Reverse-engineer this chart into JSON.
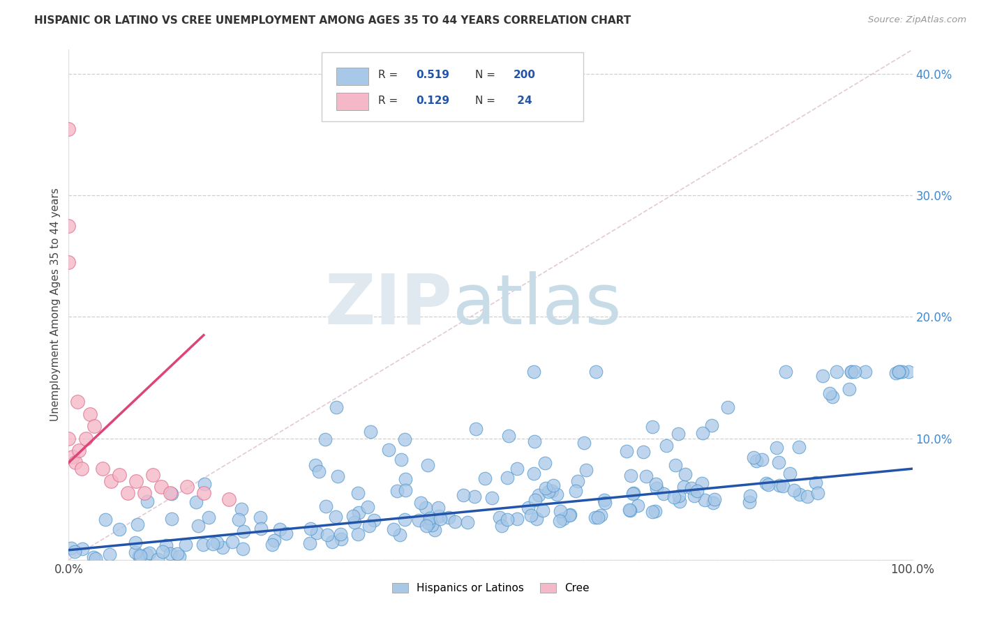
{
  "title": "HISPANIC OR LATINO VS CREE UNEMPLOYMENT AMONG AGES 35 TO 44 YEARS CORRELATION CHART",
  "source": "Source: ZipAtlas.com",
  "ylabel": "Unemployment Among Ages 35 to 44 years",
  "xlim": [
    0,
    1.0
  ],
  "ylim": [
    0,
    0.42
  ],
  "blue_color": "#a8c8e8",
  "blue_edge_color": "#5599cc",
  "pink_color": "#f4b8c8",
  "pink_edge_color": "#e07090",
  "blue_line_color": "#2255aa",
  "pink_line_color": "#dd4477",
  "diag_line_color": "#ddbbcc",
  "blue_r": "0.519",
  "blue_n": "200",
  "pink_r": "0.129",
  "pink_n": "24",
  "legend_label_blue": "Hispanics or Latinos",
  "legend_label_pink": "Cree",
  "blue_trendline_x": [
    0.0,
    1.0
  ],
  "blue_trendline_y": [
    0.008,
    0.075
  ],
  "pink_trendline_x": [
    0.0,
    0.16
  ],
  "pink_trendline_y": [
    0.08,
    0.185
  ],
  "diag_line_x": [
    0.0,
    1.0
  ],
  "diag_line_y": [
    0.0,
    0.42
  ],
  "ytick_vals": [
    0.0,
    0.1,
    0.2,
    0.3,
    0.4
  ],
  "ytick_labels": [
    "",
    "10.0%",
    "20.0%",
    "30.0%",
    "40.0%"
  ],
  "xtick_vals": [
    0.0,
    1.0
  ],
  "xtick_labels": [
    "0.0%",
    "100.0%"
  ],
  "watermark_zip": "ZIP",
  "watermark_atlas": "atlas",
  "legend_r_label": "R = ",
  "legend_n_label": "N = "
}
